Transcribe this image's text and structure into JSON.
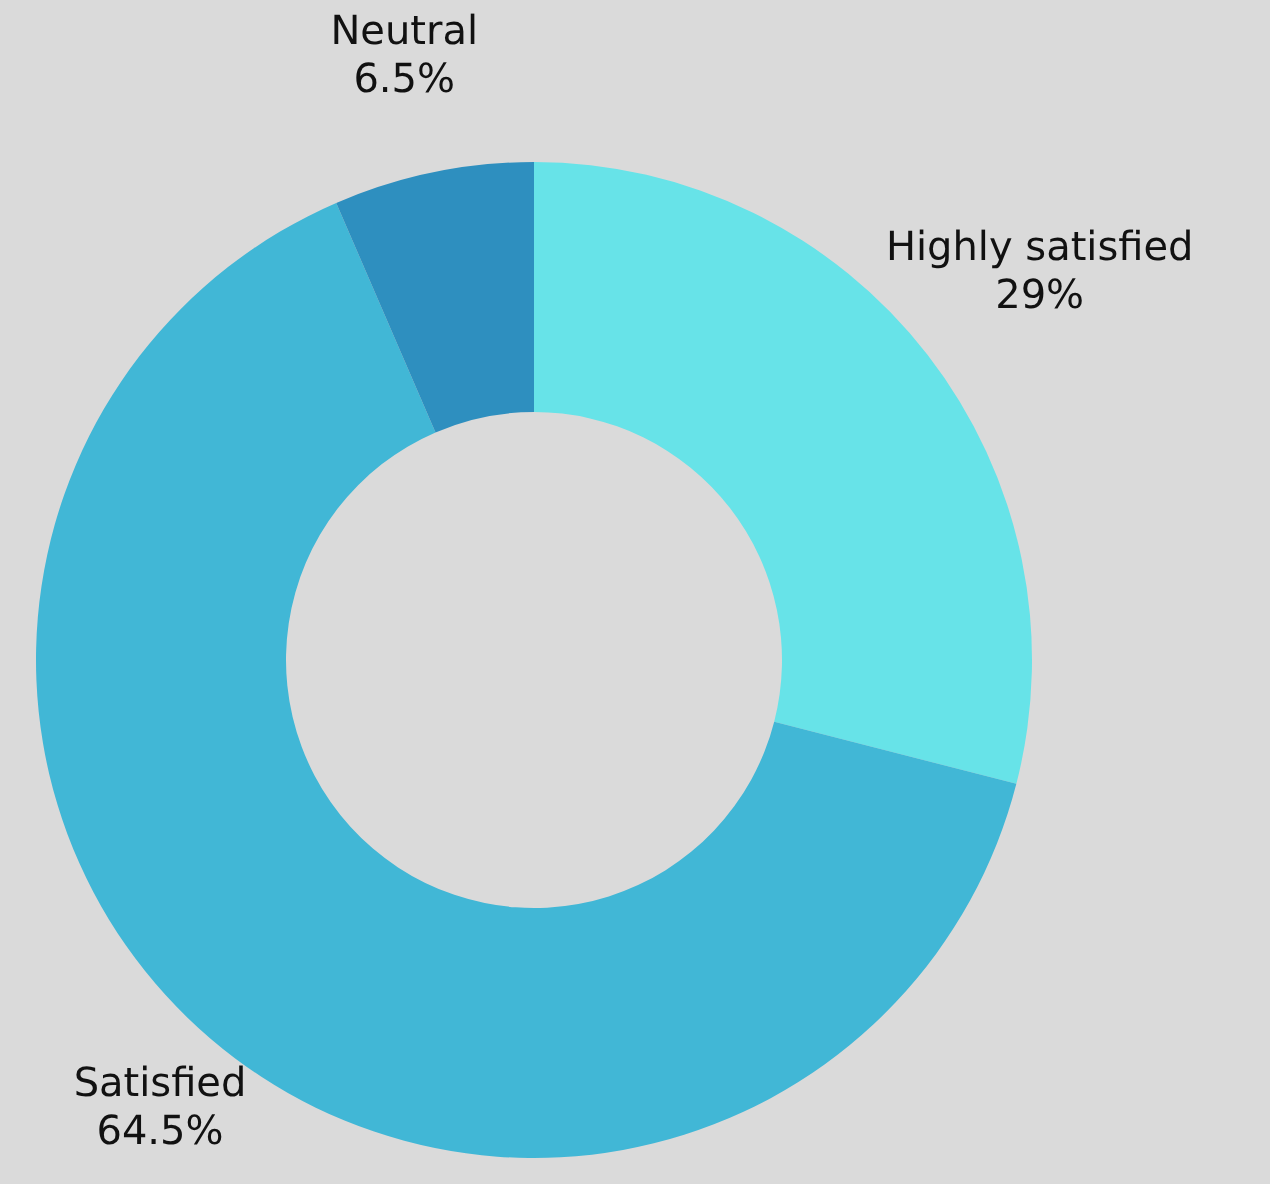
{
  "chart_data": {
    "type": "donut",
    "categories": [
      "Highly satisfied",
      "Satisfied",
      "Neutral"
    ],
    "values": [
      29,
      64.5,
      6.5
    ],
    "colors": [
      "#67e3e8",
      "#41b7d6",
      "#2e8fbf"
    ],
    "value_labels": [
      "29%",
      "64.5%",
      "6.5%"
    ]
  }
}
